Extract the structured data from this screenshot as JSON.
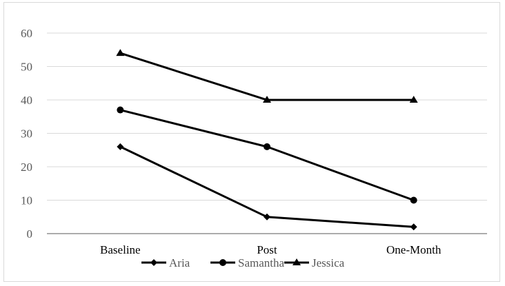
{
  "chart_data": {
    "type": "line",
    "categories": [
      "Baseline",
      "Post",
      "One-Month"
    ],
    "ylim": [
      0,
      60
    ],
    "yticks": [
      0,
      10,
      20,
      30,
      40,
      50,
      60
    ],
    "grid": true,
    "legend_position": "bottom",
    "series": [
      {
        "name": "Aria",
        "values": [
          26,
          5,
          2
        ],
        "marker": "diamond",
        "color": "#000000"
      },
      {
        "name": "Samantha",
        "values": [
          37,
          26,
          10
        ],
        "marker": "circle",
        "color": "#000000"
      },
      {
        "name": "Jessica",
        "values": [
          54,
          40,
          40
        ],
        "marker": "triangle",
        "color": "#000000"
      }
    ]
  }
}
